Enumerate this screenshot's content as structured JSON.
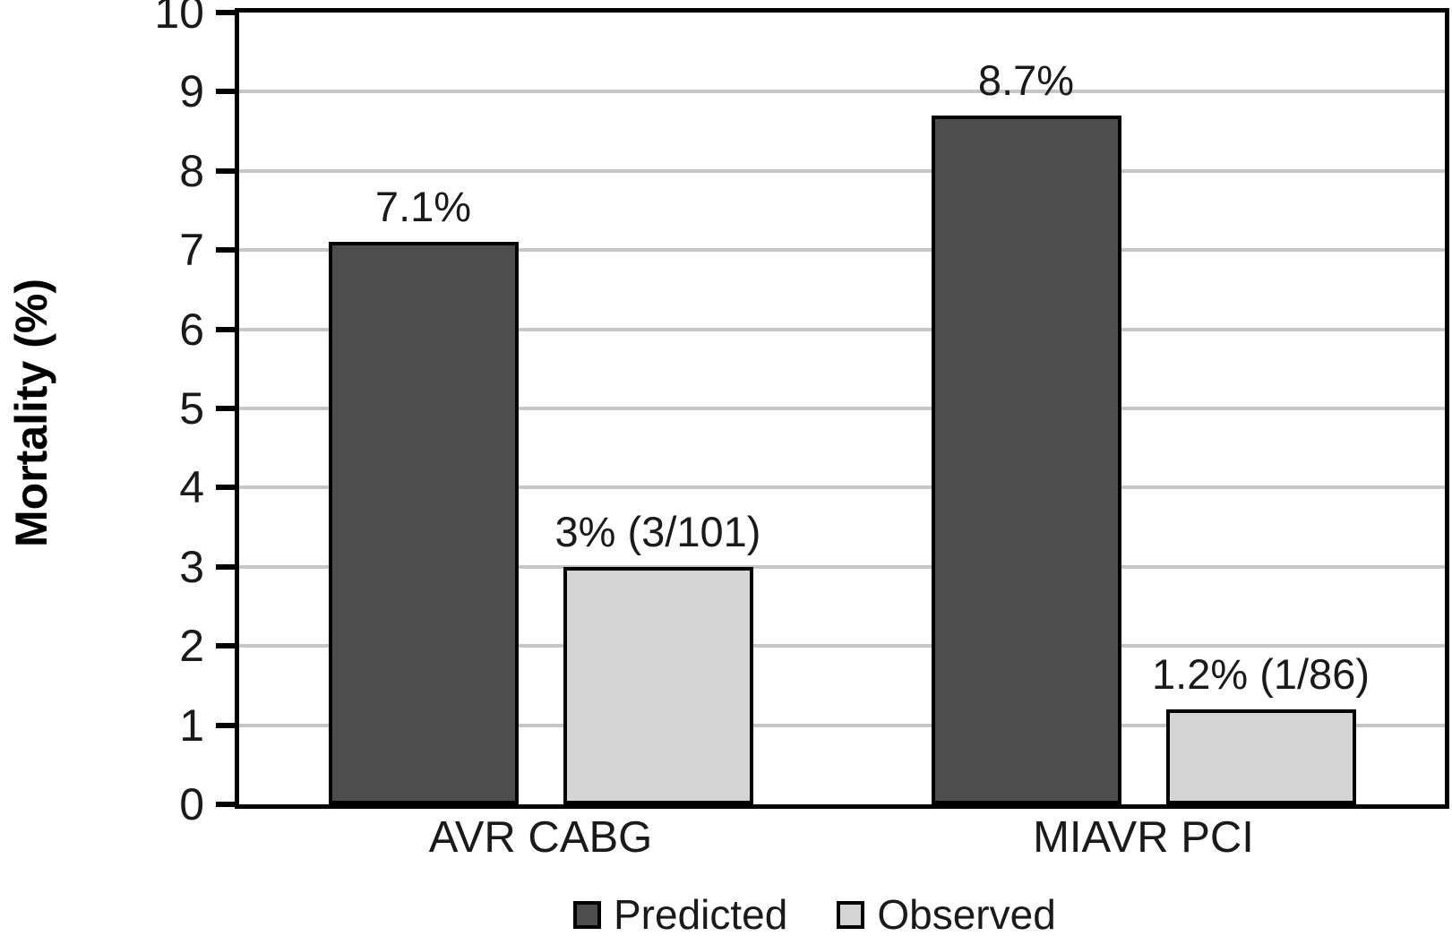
{
  "chart_data": {
    "type": "bar",
    "title": "",
    "xlabel": "",
    "ylabel": "Mortality (%)",
    "ylim": [
      0,
      10
    ],
    "yticks": [
      0,
      1,
      2,
      3,
      4,
      5,
      6,
      7,
      8,
      9,
      10
    ],
    "grid": "horizontal",
    "legend_position": "bottom",
    "categories": [
      "AVR CABG",
      "MIAVR PCI"
    ],
    "series": [
      {
        "name": "Predicted",
        "color": "#4d4d4d",
        "values": [
          7.1,
          8.7
        ],
        "labels": [
          "7.1%",
          "8.7%"
        ]
      },
      {
        "name": "Observed",
        "color": "#d4d4d4",
        "values": [
          3,
          1.2
        ],
        "labels": [
          "3% (3/101)",
          "1.2% (1/86)"
        ]
      }
    ]
  },
  "colors": {
    "axis": "#000000",
    "gridline": "#c6c6c6",
    "background": "#ffffff",
    "text": "#1a1a1a"
  }
}
